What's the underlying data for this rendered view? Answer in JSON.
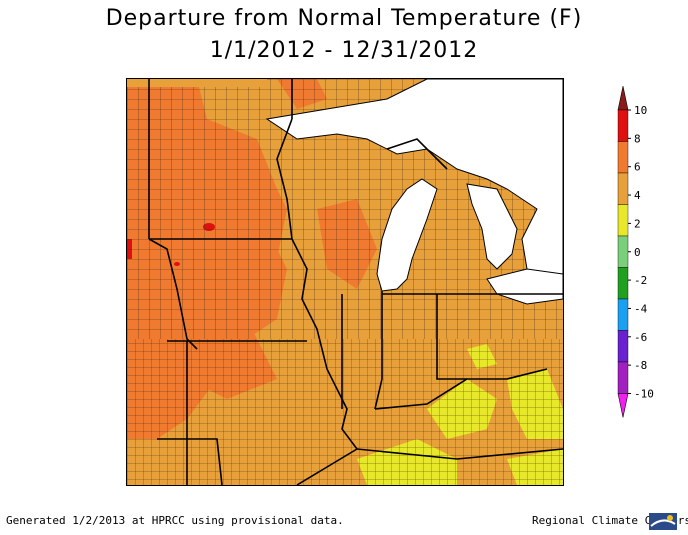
{
  "title": {
    "line1": "Departure from Normal Temperature (F)",
    "line2": "1/1/2012 - 12/31/2012"
  },
  "legend": {
    "ticks": [
      "10",
      "8",
      "6",
      "4",
      "2",
      "0",
      "-2",
      "-4",
      "-6",
      "-8",
      "-10"
    ],
    "colors": [
      "#8b1a1a",
      "#e01010",
      "#f07a30",
      "#e8a13a",
      "#e8e82a",
      "#7ad07a",
      "#1fa01f",
      "#1aa0f0",
      "#6a20d0",
      "#a020c0",
      "#f020f0"
    ]
  },
  "map": {
    "background_color": "#e8a13a",
    "water_color": "#ffffff",
    "dominant_band": "2 to 4",
    "warm_band": "4 to 6",
    "cool_band": "0 to 2",
    "hot_band": "6 to 8"
  },
  "footer": {
    "left": "Generated 1/2/2013 at HPRCC using provisional data.",
    "right": "Regional Climate Centers"
  },
  "logo": {
    "icon": "rcc-logo-icon"
  }
}
